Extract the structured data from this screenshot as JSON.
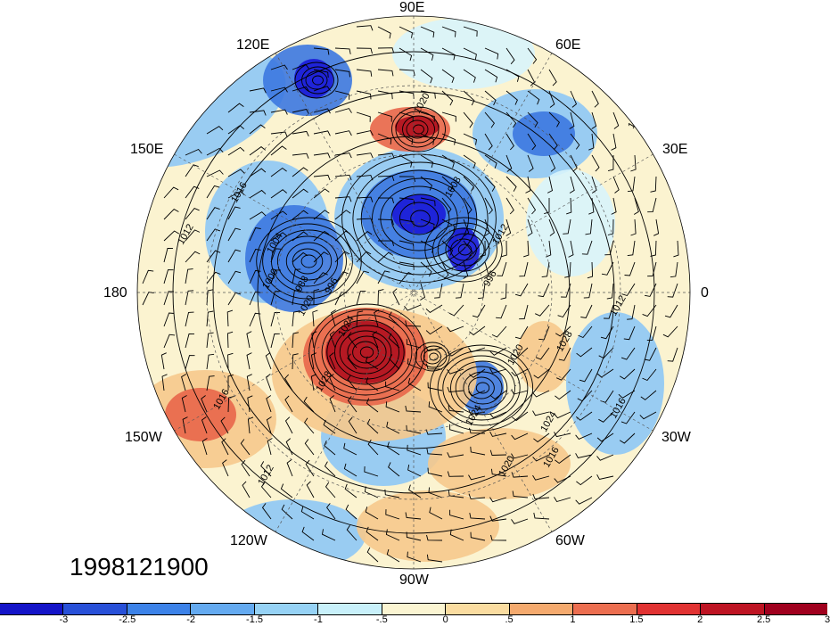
{
  "map": {
    "projection": "north-polar-stereographic",
    "fill_field_colors": {
      "strong_negative": "#1a1ad8",
      "negative": "#3c78e0",
      "weak_negative": "#8ec8f5",
      "near_zero_cold": "#d8f4fb",
      "near_zero_warm": "#fbf3d0",
      "weak_positive": "#f6c98c",
      "positive": "#e8664a",
      "strong_positive": "#b0101e"
    },
    "contour_color": "#000000",
    "wind_barb_color": "#000000"
  },
  "longitude_labels": {
    "n": "90E",
    "nne": "60E",
    "nnw": "120E",
    "ene": "30E",
    "wnw": "150E",
    "e": "0",
    "w": "180",
    "ese": "30W",
    "wsw": "150W",
    "sse": "60W",
    "ssw": "120W",
    "s": "90W"
  },
  "contour_labels": [
    "1020",
    "1012",
    "1008",
    "1016",
    "1012",
    "1004",
    "1000",
    "988",
    "996",
    "996",
    "1012",
    "1024",
    "1028",
    "1020",
    "1028",
    "1024",
    "1024",
    "1020",
    "1016",
    "1016",
    "1016",
    "1012",
    "1020",
    "1012"
  ],
  "date_stamp": "1998121900",
  "colorbar": {
    "colors": [
      "#1414c8",
      "#2850d8",
      "#3c82e8",
      "#64aaf0",
      "#96d2f5",
      "#c8f0fa",
      "#fbf5d2",
      "#fadca0",
      "#f5aa6e",
      "#ec6e50",
      "#e13232",
      "#be1423",
      "#a0001e"
    ],
    "tick_labels": [
      "-3",
      "-2.5",
      "-2",
      "-1.5",
      "-1",
      "-.5",
      "0",
      ".5",
      "1",
      "1.5",
      "2",
      "2.5",
      "3"
    ]
  }
}
